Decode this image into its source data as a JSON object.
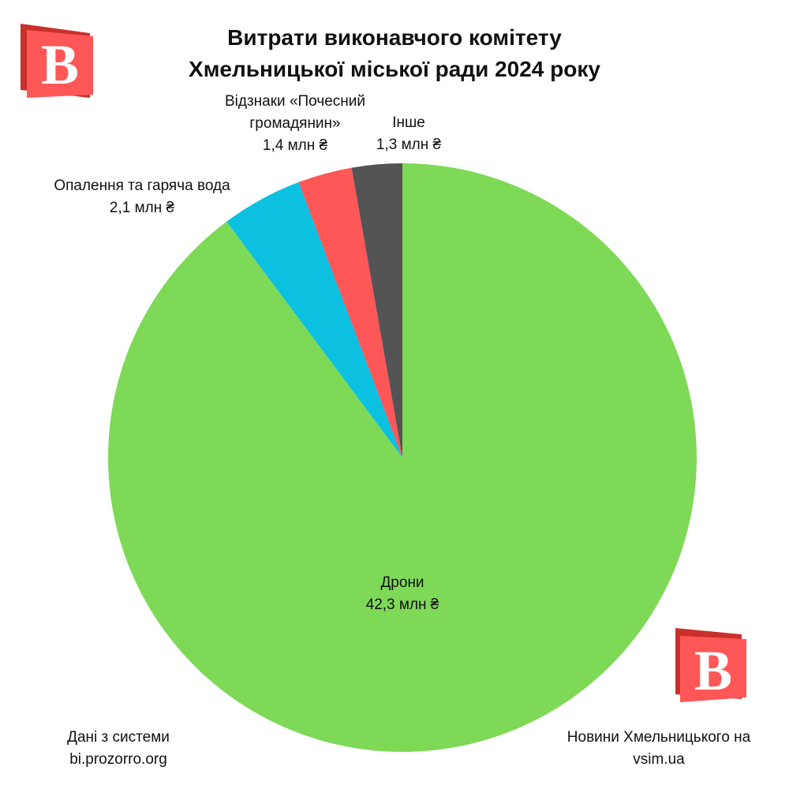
{
  "chart_data": {
    "type": "pie",
    "title": "Витрати виконавчого комітету Хмельницької міської ради 2024 року",
    "categories": [
      "Дрони",
      "Опалення та гаряча вода",
      "Відзнаки «Почесний громадянин»",
      "Інше"
    ],
    "values": [
      42.3,
      2.1,
      1.4,
      1.3
    ],
    "value_labels": [
      "42,3 млн ₴",
      "2,1 млн ₴",
      "1,4 млн ₴",
      "1,3 млн ₴"
    ],
    "colors": [
      "#7ed957",
      "#0cc0df",
      "#ff5757",
      "#545454"
    ],
    "source": "Дані з системи bi.prozorro.org",
    "credit": "Новини Хмельницького на vsim.ua",
    "logo": "В"
  }
}
